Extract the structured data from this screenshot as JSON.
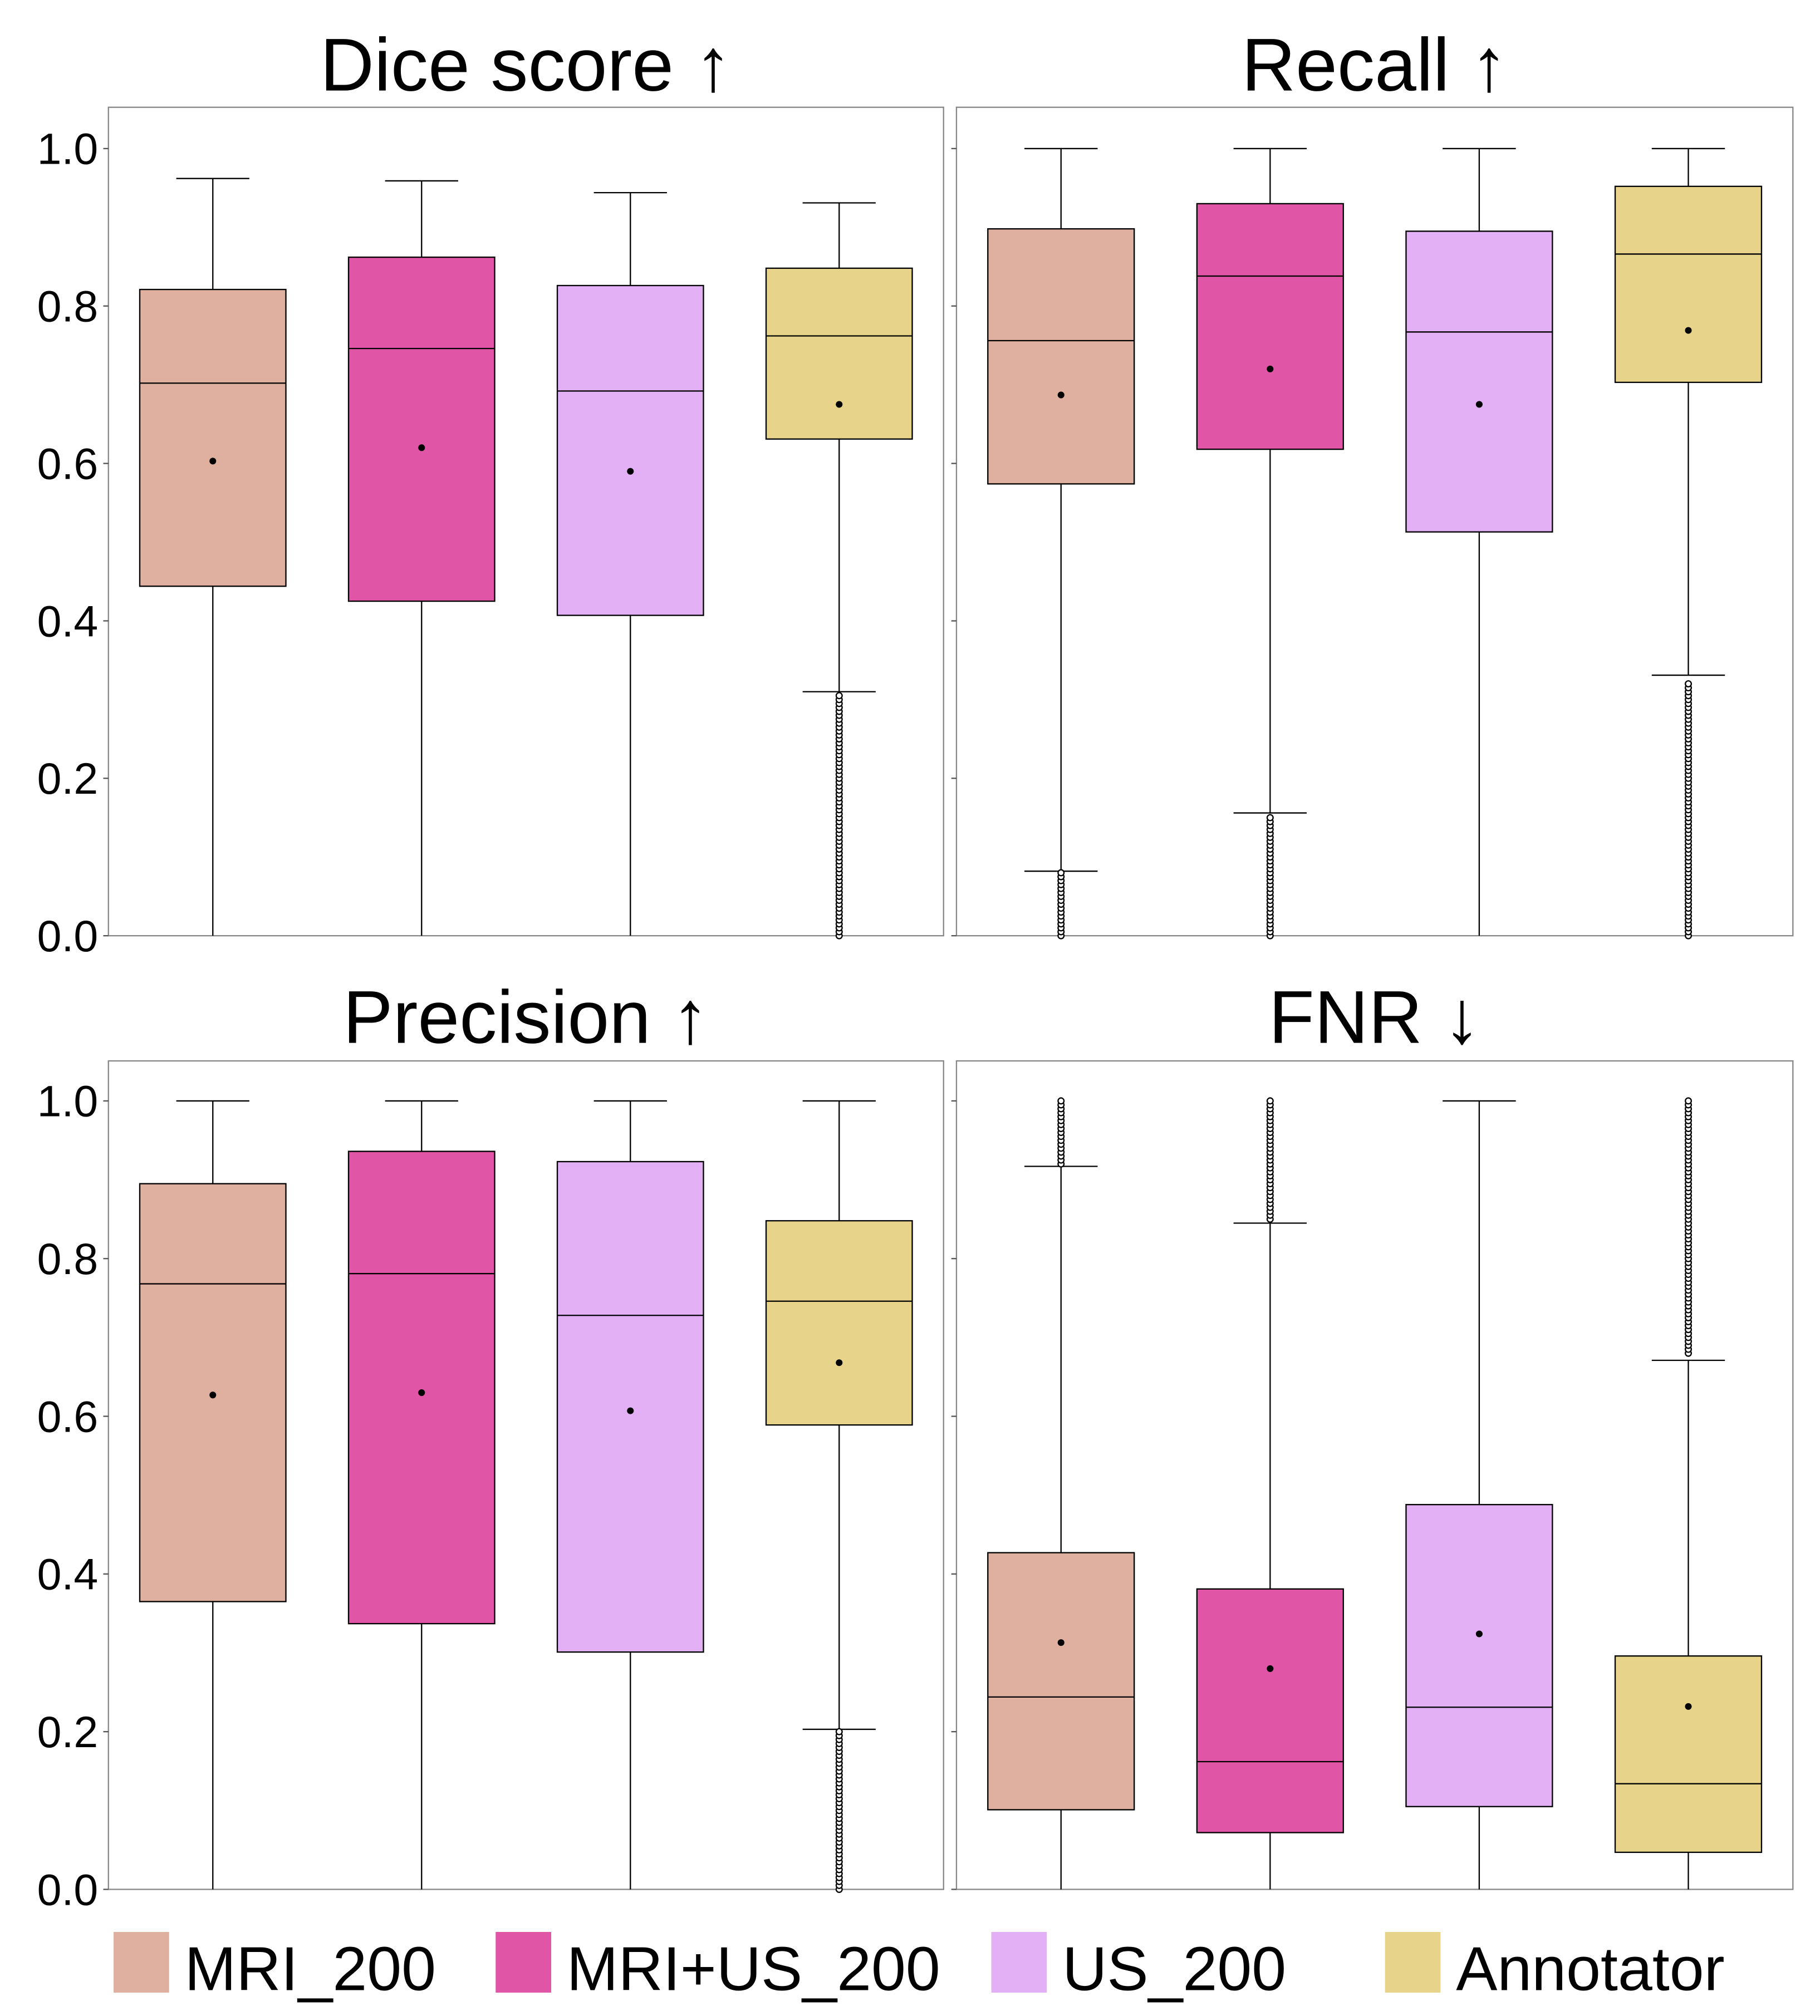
{
  "chart_data": [
    {
      "type": "box",
      "title": "Dice score ↑",
      "ylim": [
        0,
        1.05
      ],
      "yticks": [
        "0.0",
        "0.2",
        "0.4",
        "0.6",
        "0.8",
        "1.0"
      ],
      "show_tick_labels": true,
      "categories": [
        "MRI_200",
        "MRI+US_200",
        "US_200",
        "Annotator"
      ],
      "boxes": [
        {
          "whisker_low": 0.0,
          "q1": 0.444,
          "median": 0.702,
          "q3": 0.821,
          "whisker_high": 0.962,
          "mean": 0.603,
          "outlier_range": null
        },
        {
          "whisker_low": 0.0,
          "q1": 0.425,
          "median": 0.746,
          "q3": 0.862,
          "whisker_high": 0.959,
          "mean": 0.62,
          "outlier_range": null
        },
        {
          "whisker_low": 0.0,
          "q1": 0.407,
          "median": 0.692,
          "q3": 0.826,
          "whisker_high": 0.944,
          "mean": 0.59,
          "outlier_range": null
        },
        {
          "whisker_low": 0.31,
          "q1": 0.631,
          "median": 0.762,
          "q3": 0.848,
          "whisker_high": 0.931,
          "mean": 0.675,
          "outlier_range": [
            0.0,
            0.305
          ]
        }
      ]
    },
    {
      "type": "box",
      "title": "Recall ↑",
      "ylim": [
        0,
        1.05
      ],
      "yticks": [
        "0.0",
        "0.2",
        "0.4",
        "0.6",
        "0.8",
        "1.0"
      ],
      "show_tick_labels": false,
      "categories": [
        "MRI_200",
        "MRI+US_200",
        "US_200",
        "Annotator"
      ],
      "boxes": [
        {
          "whisker_low": 0.082,
          "q1": 0.574,
          "median": 0.756,
          "q3": 0.898,
          "whisker_high": 1.0,
          "mean": 0.687,
          "outlier_range": [
            0.0,
            0.08
          ]
        },
        {
          "whisker_low": 0.156,
          "q1": 0.618,
          "median": 0.838,
          "q3": 0.93,
          "whisker_high": 1.0,
          "mean": 0.72,
          "outlier_range": [
            0.0,
            0.15
          ]
        },
        {
          "whisker_low": 0.0,
          "q1": 0.513,
          "median": 0.767,
          "q3": 0.895,
          "whisker_high": 1.0,
          "mean": 0.675,
          "outlier_range": null
        },
        {
          "whisker_low": 0.331,
          "q1": 0.703,
          "median": 0.866,
          "q3": 0.952,
          "whisker_high": 1.0,
          "mean": 0.769,
          "outlier_range": [
            0.0,
            0.32
          ]
        }
      ]
    },
    {
      "type": "box",
      "title": "Precision ↑",
      "ylim": [
        0,
        1.05
      ],
      "yticks": [
        "0.0",
        "0.2",
        "0.4",
        "0.6",
        "0.8",
        "1.0"
      ],
      "show_tick_labels": true,
      "categories": [
        "MRI_200",
        "MRI+US_200",
        "US_200",
        "Annotator"
      ],
      "boxes": [
        {
          "whisker_low": 0.0,
          "q1": 0.365,
          "median": 0.768,
          "q3": 0.895,
          "whisker_high": 1.0,
          "mean": 0.627,
          "outlier_range": null
        },
        {
          "whisker_low": 0.0,
          "q1": 0.337,
          "median": 0.781,
          "q3": 0.936,
          "whisker_high": 1.0,
          "mean": 0.63,
          "outlier_range": null
        },
        {
          "whisker_low": 0.0,
          "q1": 0.301,
          "median": 0.728,
          "q3": 0.923,
          "whisker_high": 1.0,
          "mean": 0.607,
          "outlier_range": null
        },
        {
          "whisker_low": 0.203,
          "q1": 0.589,
          "median": 0.746,
          "q3": 0.848,
          "whisker_high": 1.0,
          "mean": 0.668,
          "outlier_range": [
            0.0,
            0.2
          ]
        }
      ]
    },
    {
      "type": "box",
      "title": "FNR ↓",
      "ylim": [
        0,
        1.05
      ],
      "yticks": [
        "0.0",
        "0.2",
        "0.4",
        "0.6",
        "0.8",
        "1.0"
      ],
      "show_tick_labels": false,
      "categories": [
        "MRI_200",
        "MRI+US_200",
        "US_200",
        "Annotator"
      ],
      "boxes": [
        {
          "whisker_low": 0.0,
          "q1": 0.101,
          "median": 0.244,
          "q3": 0.427,
          "whisker_high": 0.917,
          "mean": 0.313,
          "outlier_range": [
            0.92,
            1.0
          ]
        },
        {
          "whisker_low": 0.0,
          "q1": 0.072,
          "median": 0.162,
          "q3": 0.381,
          "whisker_high": 0.845,
          "mean": 0.28,
          "outlier_range": [
            0.85,
            1.0
          ]
        },
        {
          "whisker_low": 0.0,
          "q1": 0.105,
          "median": 0.231,
          "q3": 0.488,
          "whisker_high": 1.0,
          "mean": 0.324,
          "outlier_range": null
        },
        {
          "whisker_low": 0.0,
          "q1": 0.047,
          "median": 0.134,
          "q3": 0.296,
          "whisker_high": 0.671,
          "mean": 0.232,
          "outlier_range": [
            0.68,
            1.0
          ]
        }
      ]
    }
  ],
  "legend": {
    "placement": "bottom",
    "items": [
      {
        "label": "MRI_200",
        "color": "#dfb0a0"
      },
      {
        "label": "MRI+US_200",
        "color": "#e055a5"
      },
      {
        "label": "US_200",
        "color": "#e3aff5"
      },
      {
        "label": "Annotator",
        "color": "#e7d48a"
      }
    ]
  }
}
